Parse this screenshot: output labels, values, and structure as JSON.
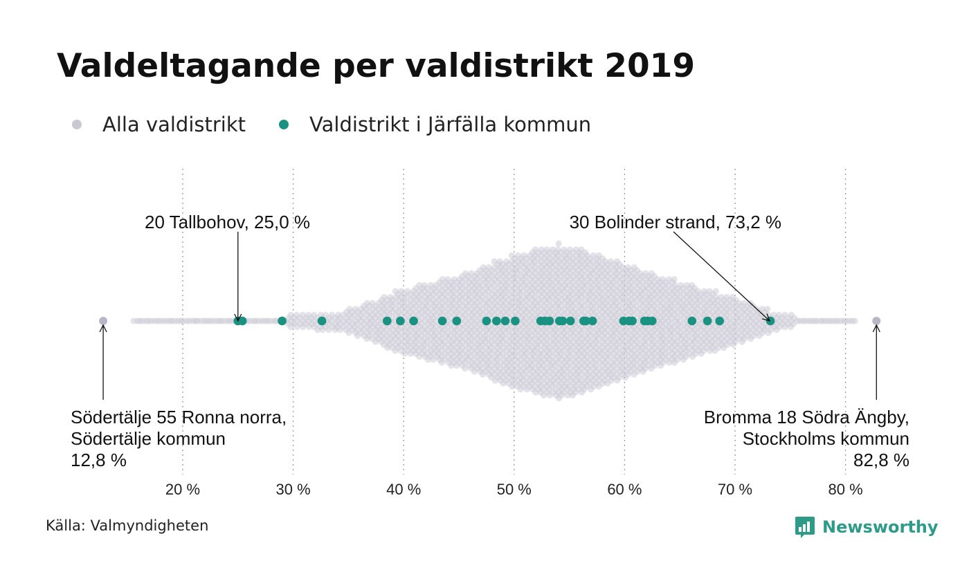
{
  "colors": {
    "all": "#c9c8d3",
    "highlight": "#1a9281",
    "brand": "#2e9a88",
    "grid": "#999999"
  },
  "legend": [
    {
      "label": "Alla valdistrikt",
      "color": "#c9c8d3"
    },
    {
      "label": "Valdistrikt i Järfälla kommun",
      "color": "#1a9281"
    }
  ],
  "footer": {
    "source": "Källa: Valmyndigheten",
    "brand": "Newsworthy",
    "brand_icon": "bar-chart-speech-bubble-icon"
  },
  "chart_data": {
    "type": "scatter",
    "subtype": "beeswarm",
    "title": "Valdeltagande per valdistrikt 2019",
    "xlabel": "",
    "ylabel": "",
    "xlim": [
      12.8,
      82.8
    ],
    "grid": "vertical dotted",
    "x_ticks": [
      {
        "value": 20,
        "label": "20 %"
      },
      {
        "value": 30,
        "label": "30 %"
      },
      {
        "value": 40,
        "label": "40 %"
      },
      {
        "value": 50,
        "label": "50 %"
      },
      {
        "value": 60,
        "label": "60 %"
      },
      {
        "value": 70,
        "label": "70 %"
      },
      {
        "value": 80,
        "label": "80 %"
      }
    ],
    "series": [
      {
        "name": "Alla valdistrikt",
        "note": "approx. 6000 districts, dense swarm peaking near 54 %",
        "density_profile": [
          [
            12.8,
            0
          ],
          [
            16,
            1
          ],
          [
            18,
            2
          ],
          [
            20,
            3
          ],
          [
            25,
            5
          ],
          [
            30,
            9
          ],
          [
            35,
            18
          ],
          [
            40,
            48
          ],
          [
            45,
            68
          ],
          [
            50,
            96
          ],
          [
            52,
            106
          ],
          [
            54,
            112
          ],
          [
            56,
            106
          ],
          [
            60,
            84
          ],
          [
            65,
            58
          ],
          [
            70,
            36
          ],
          [
            73,
            18
          ],
          [
            76,
            6
          ],
          [
            78,
            3
          ],
          [
            80,
            2
          ],
          [
            82.8,
            0
          ]
        ],
        "extremes": [
          12.8,
          82.8
        ]
      },
      {
        "name": "Valdistrikt i Järfälla kommun",
        "values": [
          25.0,
          25.4,
          29.0,
          32.6,
          38.5,
          39.7,
          40.9,
          43.5,
          44.8,
          47.5,
          48.4,
          49.2,
          50.1,
          52.4,
          52.8,
          53.2,
          54.1,
          54.4,
          55.1,
          56.3,
          56.5,
          57.1,
          59.9,
          60.4,
          60.7,
          61.8,
          62.1,
          62.5,
          66.1,
          67.5,
          68.6,
          73.2
        ]
      }
    ],
    "annotations": [
      {
        "target": 25.0,
        "lines": [
          "20 Tallbohov, 25,0 %"
        ]
      },
      {
        "target": 73.2,
        "lines": [
          "30 Bolinder strand, 73,2 %"
        ]
      },
      {
        "target": 12.8,
        "lines": [
          "Södertälje 55 Ronna norra,",
          "Södertälje kommun",
          "12,8 %"
        ]
      },
      {
        "target": 82.8,
        "lines": [
          "Bromma 18 Södra Ängby,",
          "Stockholms kommun",
          "82,8 %"
        ]
      }
    ]
  }
}
